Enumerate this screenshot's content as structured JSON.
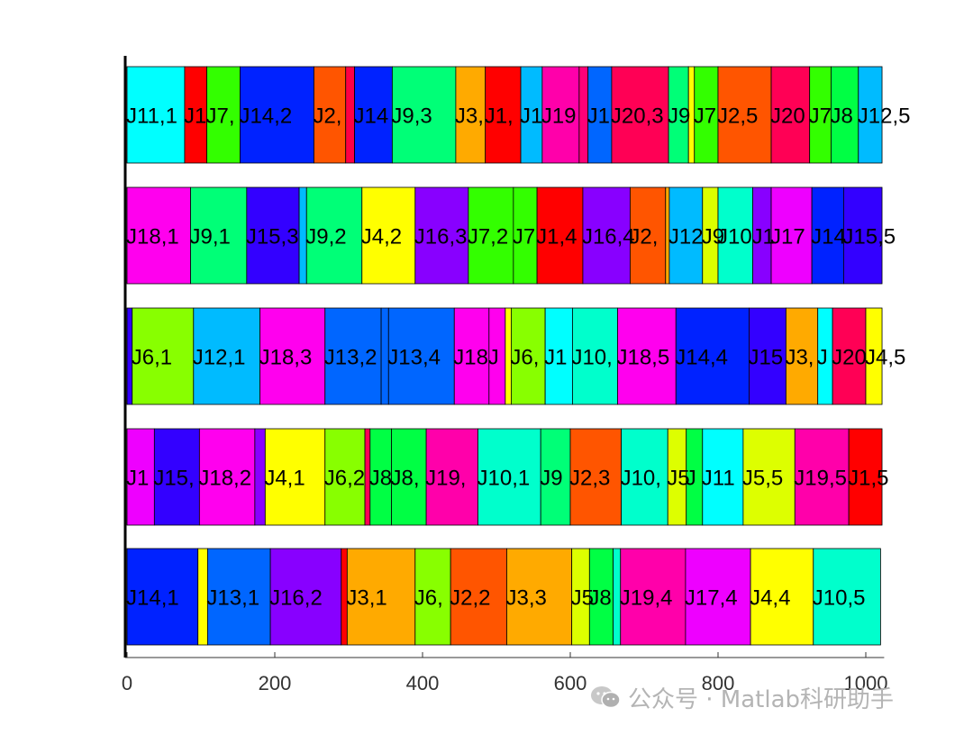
{
  "chart_data": {
    "type": "bar",
    "orientation": "horizontal-stacked-gantt",
    "title": "",
    "xlabel": "",
    "ylabel": "",
    "xlim": [
      0,
      1020
    ],
    "xticks": [
      0,
      200,
      400,
      600,
      800,
      1000
    ],
    "xtick_labels": [
      "0",
      "200",
      "400",
      "600",
      "800",
      "1000"
    ],
    "grid": false,
    "legend": "none",
    "rows": [
      {
        "segments": [
          {
            "label": "J11,1",
            "start": 0,
            "end": 78,
            "color": "#00FFFF"
          },
          {
            "label": "J1",
            "start": 78,
            "end": 108,
            "color": "#FF0000"
          },
          {
            "label": "J7,",
            "start": 108,
            "end": 153,
            "color": "#33FF00"
          },
          {
            "label": "J14,2",
            "start": 153,
            "end": 253,
            "color": "#0022FF"
          },
          {
            "label": "J2,",
            "start": 253,
            "end": 296,
            "color": "#FF5500"
          },
          {
            "label": "",
            "start": 296,
            "end": 308,
            "color": "#FF0044"
          },
          {
            "label": "J14",
            "start": 308,
            "end": 359,
            "color": "#0022FF"
          },
          {
            "label": "J9,3",
            "start": 359,
            "end": 445,
            "color": "#00FF77"
          },
          {
            "label": "J3,",
            "start": 445,
            "end": 485,
            "color": "#FFAA00"
          },
          {
            "label": "J1,",
            "start": 485,
            "end": 533,
            "color": "#FF0000"
          },
          {
            "label": "J1",
            "start": 533,
            "end": 562,
            "color": "#00BBFF"
          },
          {
            "label": "J19",
            "start": 562,
            "end": 612,
            "color": "#FF00AA"
          },
          {
            "label": "",
            "start": 612,
            "end": 624,
            "color": "#FF0077"
          },
          {
            "label": "J1",
            "start": 624,
            "end": 656,
            "color": "#0066FF"
          },
          {
            "label": "J20,3",
            "start": 656,
            "end": 733,
            "color": "#FF0055"
          },
          {
            "label": "J9",
            "start": 733,
            "end": 760,
            "color": "#00FF77"
          },
          {
            "label": "",
            "start": 760,
            "end": 768,
            "color": "#FFFF00"
          },
          {
            "label": "J7",
            "start": 768,
            "end": 800,
            "color": "#33FF00"
          },
          {
            "label": "J2,5",
            "start": 800,
            "end": 872,
            "color": "#FF5500"
          },
          {
            "label": "J20",
            "start": 872,
            "end": 924,
            "color": "#FF0055"
          },
          {
            "label": "J7",
            "start": 924,
            "end": 953,
            "color": "#33FF00"
          },
          {
            "label": "J8",
            "start": 953,
            "end": 990,
            "color": "#00FF44"
          },
          {
            "label": "J12,5",
            "start": 990,
            "end": 1022,
            "color": "#00BBFF"
          }
        ]
      },
      {
        "segments": [
          {
            "label": "J18,1",
            "start": 0,
            "end": 86,
            "color": "#FF00EE"
          },
          {
            "label": "J9,1",
            "start": 86,
            "end": 162,
            "color": "#00FF77"
          },
          {
            "label": "J15,3",
            "start": 162,
            "end": 233,
            "color": "#3300FF"
          },
          {
            "label": "",
            "start": 233,
            "end": 243,
            "color": "#00BBFF"
          },
          {
            "label": "J9,2",
            "start": 243,
            "end": 318,
            "color": "#00FF77"
          },
          {
            "label": "J4,2",
            "start": 318,
            "end": 390,
            "color": "#FFFF00"
          },
          {
            "label": "J16,3",
            "start": 390,
            "end": 462,
            "color": "#8800FF"
          },
          {
            "label": "J7,2",
            "start": 462,
            "end": 523,
            "color": "#33FF00"
          },
          {
            "label": "J7",
            "start": 523,
            "end": 555,
            "color": "#33FF00"
          },
          {
            "label": "J1,4",
            "start": 555,
            "end": 617,
            "color": "#FF0000"
          },
          {
            "label": "J16,4",
            "start": 617,
            "end": 681,
            "color": "#8800FF"
          },
          {
            "label": "J2,",
            "start": 681,
            "end": 729,
            "color": "#FF5500"
          },
          {
            "label": "",
            "start": 729,
            "end": 734,
            "color": "#FFAA00"
          },
          {
            "label": "J12",
            "start": 734,
            "end": 779,
            "color": "#00BBFF"
          },
          {
            "label": "J9",
            "start": 779,
            "end": 800,
            "color": "#DDFF00"
          },
          {
            "label": "J10",
            "start": 800,
            "end": 847,
            "color": "#00FFCC"
          },
          {
            "label": "J1",
            "start": 847,
            "end": 872,
            "color": "#8800FF"
          },
          {
            "label": "J17",
            "start": 872,
            "end": 927,
            "color": "#EE00FF"
          },
          {
            "label": "J14",
            "start": 927,
            "end": 970,
            "color": "#0022FF"
          },
          {
            "label": "J15,5",
            "start": 970,
            "end": 1022,
            "color": "#3300FF"
          }
        ]
      },
      {
        "segments": [
          {
            "label": "",
            "start": 0,
            "end": 7,
            "color": "#3300FF"
          },
          {
            "label": "J6,1",
            "start": 7,
            "end": 90,
            "color": "#88FF00"
          },
          {
            "label": "J12,1",
            "start": 90,
            "end": 180,
            "color": "#00BBFF"
          },
          {
            "label": "J18,3",
            "start": 180,
            "end": 268,
            "color": "#FF00EE"
          },
          {
            "label": "J13,2",
            "start": 268,
            "end": 344,
            "color": "#0066FF"
          },
          {
            "label": "",
            "start": 344,
            "end": 354,
            "color": "#0066FF"
          },
          {
            "label": "J13,4",
            "start": 354,
            "end": 443,
            "color": "#0066FF"
          },
          {
            "label": "J18",
            "start": 443,
            "end": 490,
            "color": "#FF00EE"
          },
          {
            "label": "J",
            "start": 490,
            "end": 512,
            "color": "#FF00EE"
          },
          {
            "label": "",
            "start": 512,
            "end": 520,
            "color": "#FFFF00"
          },
          {
            "label": "J6,",
            "start": 520,
            "end": 566,
            "color": "#88FF00"
          },
          {
            "label": "J1",
            "start": 566,
            "end": 603,
            "color": "#00FFFF"
          },
          {
            "label": "J10,",
            "start": 603,
            "end": 664,
            "color": "#00FFCC"
          },
          {
            "label": "J18,5",
            "start": 664,
            "end": 743,
            "color": "#FF00EE"
          },
          {
            "label": "J14,4",
            "start": 743,
            "end": 842,
            "color": "#0022FF"
          },
          {
            "label": "J15",
            "start": 842,
            "end": 892,
            "color": "#3300FF"
          },
          {
            "label": "J3,",
            "start": 892,
            "end": 935,
            "color": "#FFAA00"
          },
          {
            "label": "J",
            "start": 935,
            "end": 955,
            "color": "#00FFFF"
          },
          {
            "label": "J20",
            "start": 955,
            "end": 1000,
            "color": "#FF0055"
          },
          {
            "label": "J4,5",
            "start": 1000,
            "end": 1022,
            "color": "#FFFF00"
          }
        ]
      },
      {
        "segments": [
          {
            "label": "J1",
            "start": 0,
            "end": 37,
            "color": "#EE00FF"
          },
          {
            "label": "J15,",
            "start": 37,
            "end": 98,
            "color": "#3300FF"
          },
          {
            "label": "J18,2",
            "start": 98,
            "end": 173,
            "color": "#FF00EE"
          },
          {
            "label": "",
            "start": 173,
            "end": 187,
            "color": "#8800FF"
          },
          {
            "label": "J4,1",
            "start": 187,
            "end": 268,
            "color": "#FFFF00"
          },
          {
            "label": "J6,2",
            "start": 268,
            "end": 322,
            "color": "#88FF00"
          },
          {
            "label": "",
            "start": 322,
            "end": 329,
            "color": "#FF0055"
          },
          {
            "label": "J8",
            "start": 329,
            "end": 358,
            "color": "#00FF44"
          },
          {
            "label": "J8,",
            "start": 358,
            "end": 405,
            "color": "#00FF44"
          },
          {
            "label": "J19,",
            "start": 405,
            "end": 475,
            "color": "#FF00AA"
          },
          {
            "label": "J10,1",
            "start": 475,
            "end": 560,
            "color": "#00FFCC"
          },
          {
            "label": "J9",
            "start": 560,
            "end": 600,
            "color": "#00FF77"
          },
          {
            "label": "J2,3",
            "start": 600,
            "end": 669,
            "color": "#FF5500"
          },
          {
            "label": "J10,",
            "start": 669,
            "end": 732,
            "color": "#00FFCC"
          },
          {
            "label": "J5",
            "start": 732,
            "end": 757,
            "color": "#DDFF00"
          },
          {
            "label": "J",
            "start": 757,
            "end": 779,
            "color": "#00FF44"
          },
          {
            "label": "J11",
            "start": 779,
            "end": 834,
            "color": "#00FFFF"
          },
          {
            "label": "J5,5",
            "start": 834,
            "end": 904,
            "color": "#DDFF00"
          },
          {
            "label": "J19,5",
            "start": 904,
            "end": 977,
            "color": "#FF00AA"
          },
          {
            "label": "J1,5",
            "start": 977,
            "end": 1022,
            "color": "#FF0000"
          }
        ]
      },
      {
        "segments": [
          {
            "label": "J14,1",
            "start": 0,
            "end": 96,
            "color": "#0022FF"
          },
          {
            "label": "",
            "start": 96,
            "end": 109,
            "color": "#FFFF00"
          },
          {
            "label": "J13,1",
            "start": 109,
            "end": 194,
            "color": "#0066FF"
          },
          {
            "label": "J16,2",
            "start": 194,
            "end": 290,
            "color": "#8800FF"
          },
          {
            "label": "",
            "start": 290,
            "end": 298,
            "color": "#FF0000"
          },
          {
            "label": "J3,1",
            "start": 298,
            "end": 390,
            "color": "#FFAA00"
          },
          {
            "label": "J6,",
            "start": 390,
            "end": 438,
            "color": "#88FF00"
          },
          {
            "label": "J2,2",
            "start": 438,
            "end": 514,
            "color": "#FF5500"
          },
          {
            "label": "J3,3",
            "start": 514,
            "end": 602,
            "color": "#FFAA00"
          },
          {
            "label": "J5",
            "start": 602,
            "end": 626,
            "color": "#DDFF00"
          },
          {
            "label": "J8",
            "start": 626,
            "end": 658,
            "color": "#00FF44"
          },
          {
            "label": "",
            "start": 658,
            "end": 668,
            "color": "#00FFCC"
          },
          {
            "label": "J19,4",
            "start": 668,
            "end": 756,
            "color": "#FF00AA"
          },
          {
            "label": "J17,4",
            "start": 756,
            "end": 844,
            "color": "#EE00FF"
          },
          {
            "label": "J4,4",
            "start": 844,
            "end": 929,
            "color": "#FFFF00"
          },
          {
            "label": "J10,5",
            "start": 929,
            "end": 1020,
            "color": "#00FFCC"
          }
        ]
      }
    ]
  },
  "watermark": {
    "text": "公众号 · Matlab科研助手",
    "icon": "wechat-icon"
  }
}
